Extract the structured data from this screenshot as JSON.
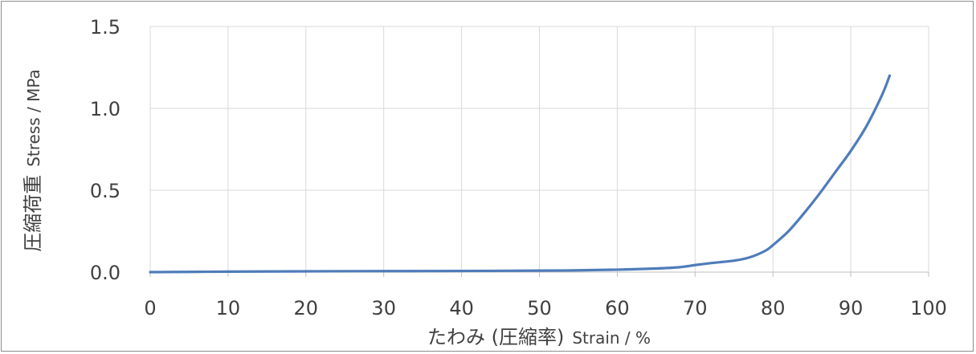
{
  "chart_data": {
    "type": "line",
    "title": "",
    "xlabel_main": "たわみ (圧縮率)",
    "xlabel_sub": "Strain / %",
    "ylabel_main": "圧縮荷重",
    "ylabel_sub": "Stress / MPa",
    "xlim": [
      0,
      100
    ],
    "ylim": [
      0,
      1.5
    ],
    "x_ticks": [
      "0",
      "10",
      "20",
      "30",
      "40",
      "50",
      "60",
      "70",
      "80",
      "90",
      "100"
    ],
    "y_ticks": [
      "0.0",
      "0.5",
      "1.0",
      "1.5"
    ],
    "grid": true,
    "legend": "none",
    "series": [
      {
        "color": "#4f7cba",
        "x": [
          0,
          10,
          20,
          30,
          40,
          50,
          55,
          60,
          65,
          68,
          70,
          72,
          75,
          77,
          79,
          80,
          82,
          84,
          86,
          88,
          90,
          92,
          94,
          95
        ],
        "y": [
          0.0,
          0.003,
          0.005,
          0.006,
          0.007,
          0.009,
          0.011,
          0.015,
          0.022,
          0.03,
          0.043,
          0.055,
          0.07,
          0.09,
          0.13,
          0.165,
          0.25,
          0.36,
          0.48,
          0.61,
          0.74,
          0.89,
          1.08,
          1.2
        ]
      }
    ]
  }
}
